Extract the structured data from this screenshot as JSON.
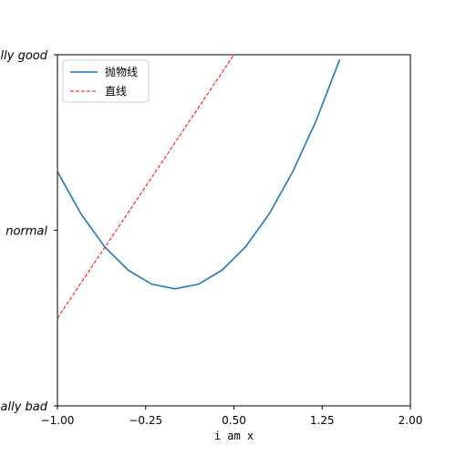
{
  "chart_data": {
    "type": "line",
    "xlabel": "i am x",
    "xlim": [
      -1.0,
      2.0
    ],
    "ylim": [
      -2,
      1
    ],
    "x_ticks": [
      {
        "value": -1.0,
        "label": "−1.00"
      },
      {
        "value": -0.25,
        "label": "−0.25"
      },
      {
        "value": 0.5,
        "label": "0.50"
      },
      {
        "value": 1.25,
        "label": "1.25"
      },
      {
        "value": 2.0,
        "label": "2.00"
      }
    ],
    "y_ticks": [
      {
        "value": -2,
        "label": "really bad"
      },
      {
        "value": -0.5,
        "label": "normal"
      },
      {
        "value": 1,
        "label": "really good"
      }
    ],
    "legend": {
      "position": "upper-left"
    },
    "series": [
      {
        "name": "抛物线",
        "color": "#1f77b4",
        "style": "solid",
        "x": [
          -1.0,
          -0.8,
          -0.6,
          -0.4,
          -0.2,
          0.0,
          0.2,
          0.4,
          0.6,
          0.8,
          1.0,
          1.2,
          1.4
        ],
        "y": [
          0.0,
          -0.36,
          -0.64,
          -0.84,
          -0.96,
          -1.0,
          -0.96,
          -0.84,
          -0.64,
          -0.36,
          0.0,
          0.44,
          0.96
        ]
      },
      {
        "name": "直线",
        "color": "#ff0000",
        "style": "dashed",
        "x": [
          -1.0,
          0.5
        ],
        "y": [
          -1.25,
          1.0
        ]
      }
    ]
  }
}
